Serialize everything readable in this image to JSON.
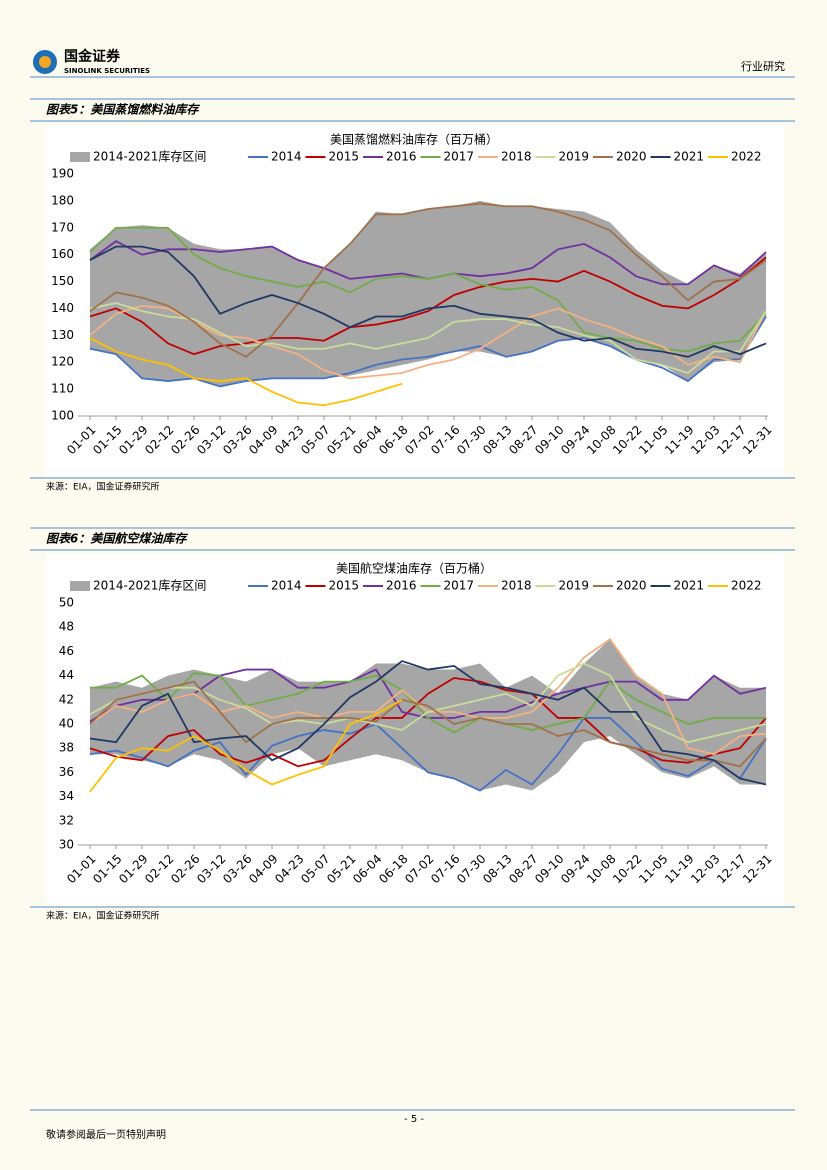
{
  "header": {
    "brand_cn": "国金证券",
    "brand_en": "SINOLINK SECURITIES",
    "section": "行业研究"
  },
  "footer": {
    "page": "- 5 -",
    "notice": "敬请参阅最后一页特别声明"
  },
  "chart_data": [
    {
      "type": "line",
      "caption": "图表5：美国蒸馏燃料油库存",
      "title": "美国蒸馏燃料油库存（百万桶）",
      "source": "来源：EIA，国金证券研究所",
      "categories": [
        "01-01",
        "01-15",
        "01-29",
        "02-12",
        "02-26",
        "03-12",
        "03-26",
        "04-09",
        "04-23",
        "05-07",
        "05-21",
        "06-04",
        "06-18",
        "07-02",
        "07-16",
        "07-30",
        "08-13",
        "08-27",
        "09-10",
        "09-24",
        "10-08",
        "10-22",
        "11-05",
        "11-19",
        "12-03",
        "12-17",
        "12-31"
      ],
      "ylim": [
        100,
        190
      ],
      "yticks": [
        100,
        110,
        120,
        130,
        140,
        150,
        160,
        170,
        180,
        190
      ],
      "grid": false,
      "legend": "top",
      "band": {
        "name": "2014-2021库存区间",
        "color": "#a6a6a6",
        "high": [
          162,
          170,
          171,
          170,
          164,
          162,
          162,
          163,
          158,
          155,
          164,
          176,
          175,
          177,
          178,
          180,
          178,
          178,
          177,
          176,
          172,
          162,
          154,
          149,
          156,
          153,
          161
        ],
        "low": [
          125,
          123,
          114,
          113,
          114,
          111,
          113,
          114,
          114,
          114,
          115,
          117,
          119,
          121,
          124,
          124,
          122,
          124,
          128,
          129,
          126,
          121,
          119,
          113,
          120,
          121,
          137
        ]
      },
      "series": [
        {
          "name": "2014",
          "color": "#4472c4",
          "values": [
            125,
            123,
            114,
            113,
            114,
            111,
            113,
            114,
            114,
            114,
            116,
            119,
            121,
            122,
            124,
            126,
            122,
            124,
            128,
            129,
            126,
            121,
            118,
            113,
            121,
            121,
            137
          ]
        },
        {
          "name": "2015",
          "color": "#c00000",
          "values": [
            137,
            140,
            135,
            127,
            123,
            126,
            127,
            129,
            129,
            128,
            133,
            134,
            136,
            139,
            145,
            148,
            150,
            151,
            150,
            154,
            150,
            145,
            141,
            140,
            145,
            151,
            159
          ]
        },
        {
          "name": "2016",
          "color": "#7030a0",
          "values": [
            158,
            165,
            160,
            162,
            162,
            161,
            162,
            163,
            158,
            155,
            151,
            152,
            153,
            151,
            153,
            152,
            153,
            155,
            162,
            164,
            159,
            152,
            149,
            149,
            156,
            152,
            161
          ]
        },
        {
          "name": "2017",
          "color": "#70ad47",
          "values": [
            161,
            170,
            170,
            170,
            160,
            155,
            152,
            150,
            148,
            150,
            146,
            151,
            152,
            151,
            153,
            149,
            147,
            148,
            143,
            131,
            129,
            128,
            125,
            124,
            127,
            128,
            138
          ]
        },
        {
          "name": "2018",
          "color": "#f4b183",
          "values": [
            130,
            138,
            141,
            140,
            135,
            130,
            129,
            126,
            123,
            117,
            114,
            115,
            116,
            119,
            121,
            125,
            131,
            137,
            140,
            136,
            133,
            129,
            126,
            119,
            122,
            120,
            139
          ]
        },
        {
          "name": "2019",
          "color": "#c9dc9a",
          "values": [
            140,
            142,
            139,
            137,
            136,
            131,
            126,
            127,
            125,
            125,
            127,
            125,
            127,
            129,
            135,
            136,
            136,
            134,
            133,
            130,
            128,
            121,
            119,
            116,
            124,
            124,
            139
          ]
        },
        {
          "name": "2020",
          "color": "#a0714a",
          "values": [
            139,
            146,
            144,
            141,
            135,
            127,
            122,
            130,
            142,
            155,
            164,
            175,
            175,
            177,
            178,
            179,
            178,
            178,
            176,
            173,
            169,
            160,
            152,
            143,
            150,
            151,
            158
          ]
        },
        {
          "name": "2021",
          "color": "#1f3864",
          "values": [
            158,
            163,
            163,
            161,
            152,
            138,
            142,
            145,
            142,
            138,
            133,
            137,
            137,
            140,
            141,
            138,
            137,
            136,
            131,
            128,
            129,
            125,
            124,
            122,
            126,
            123,
            127
          ]
        },
        {
          "name": "2022",
          "color": "#ffc000",
          "values": [
            129,
            124,
            121,
            119,
            114,
            113,
            114,
            109,
            105,
            104,
            106,
            109,
            112,
            null,
            null,
            null,
            null,
            null,
            null,
            null,
            null,
            null,
            null,
            null,
            null,
            null,
            null
          ]
        }
      ]
    },
    {
      "type": "line",
      "caption": "图表6：美国航空煤油库存",
      "title": "美国航空煤油库存（百万桶）",
      "source": "来源：EIA，国金证券研究所",
      "categories": [
        "01-01",
        "01-15",
        "01-29",
        "02-12",
        "02-26",
        "03-12",
        "03-26",
        "04-09",
        "04-23",
        "05-07",
        "05-21",
        "06-04",
        "06-18",
        "07-02",
        "07-16",
        "07-30",
        "08-13",
        "08-27",
        "09-10",
        "09-24",
        "10-08",
        "10-22",
        "11-05",
        "11-19",
        "12-03",
        "12-17",
        "12-31"
      ],
      "ylim": [
        30,
        50
      ],
      "yticks": [
        30,
        32,
        34,
        36,
        38,
        40,
        42,
        44,
        46,
        48,
        50
      ],
      "grid": false,
      "legend": "top",
      "band": {
        "name": "2014-2021库存区间",
        "color": "#a6a6a6",
        "high": [
          43,
          43.5,
          43,
          44,
          44.5,
          44,
          43.5,
          44.5,
          43.5,
          43.5,
          43.5,
          45,
          45,
          44.5,
          44.5,
          45,
          43,
          44,
          42.5,
          45,
          47,
          44,
          42.5,
          42,
          44,
          43,
          43
        ],
        "low": [
          37.5,
          37.5,
          37,
          36.5,
          37.5,
          37,
          35.5,
          37.5,
          38,
          36.5,
          37,
          37.5,
          37,
          36,
          35.5,
          34.5,
          35,
          34.5,
          36,
          38.5,
          39,
          37.5,
          36,
          35.5,
          36.5,
          35,
          35
        ]
      },
      "series": [
        {
          "name": "2014",
          "color": "#4472c4",
          "values": [
            37.5,
            37.8,
            37.2,
            36.5,
            37.8,
            38.5,
            35.8,
            38.2,
            39,
            39.5,
            39.2,
            40,
            38,
            36,
            35.5,
            34.5,
            36.2,
            35,
            37.5,
            40.5,
            40.5,
            38.5,
            36.3,
            35.7,
            37,
            35.5,
            38.8
          ]
        },
        {
          "name": "2015",
          "color": "#c00000",
          "values": [
            38,
            37.3,
            37,
            39,
            39.5,
            37.5,
            36.8,
            37.5,
            36.5,
            37,
            38.8,
            40.5,
            40.5,
            42.5,
            43.8,
            43.5,
            42.8,
            42.5,
            40.5,
            40.5,
            38.5,
            38,
            37,
            36.8,
            37.5,
            38,
            40.5
          ]
        },
        {
          "name": "2016",
          "color": "#7030a0",
          "values": [
            40.2,
            41.5,
            42,
            42,
            42.5,
            44,
            44.5,
            44.5,
            43,
            43,
            43.5,
            44.5,
            41,
            40.5,
            40.5,
            41,
            41,
            41.8,
            42.5,
            43,
            43.5,
            43.5,
            42,
            42,
            44,
            42.5,
            43
          ]
        },
        {
          "name": "2017",
          "color": "#70ad47",
          "values": [
            43,
            43,
            44,
            42,
            44.2,
            44,
            41.5,
            42,
            42.5,
            43.5,
            43.5,
            44,
            42.8,
            40.5,
            39.3,
            40.5,
            40,
            39.5,
            40,
            40.5,
            43.5,
            42,
            41,
            40,
            40.5,
            40.5,
            40.5
          ]
        },
        {
          "name": "2018",
          "color": "#f4b183",
          "values": [
            40,
            41.5,
            41,
            42,
            42.5,
            41,
            41.5,
            40.5,
            41,
            40.5,
            41,
            41,
            42.8,
            41,
            41,
            40.5,
            40.5,
            41,
            43,
            45.5,
            47,
            44,
            42.5,
            38,
            37.5,
            39,
            39.2
          ]
        },
        {
          "name": "2019",
          "color": "#c9dc9a",
          "values": [
            40.8,
            42,
            42.5,
            43,
            43,
            42,
            41.3,
            40,
            40.3,
            40,
            40.5,
            40,
            39.5,
            41,
            41.5,
            42,
            42.5,
            41.5,
            44,
            45,
            44,
            40.5,
            39.5,
            38.5,
            39,
            39.5,
            40
          ]
        },
        {
          "name": "2020",
          "color": "#a0714a",
          "values": [
            40,
            42,
            42.5,
            43,
            43.5,
            41,
            38.5,
            40,
            40.5,
            40.5,
            40.5,
            40.2,
            42,
            41.5,
            40,
            40.5,
            40,
            40,
            39,
            39.5,
            38.5,
            38,
            37.5,
            37,
            37,
            36.5,
            38.8
          ]
        },
        {
          "name": "2021",
          "color": "#1f3864",
          "values": [
            38.8,
            38.5,
            41.5,
            42.5,
            38.5,
            38.8,
            39,
            37,
            38,
            40,
            42.2,
            43.5,
            45.2,
            44.5,
            44.8,
            43.3,
            43,
            42.5,
            42,
            43,
            41,
            41,
            37.8,
            37.5,
            37,
            35.5,
            35
          ]
        },
        {
          "name": "2022",
          "color": "#ffc000",
          "values": [
            34.4,
            37.2,
            38,
            37.8,
            39,
            37.8,
            36.2,
            35,
            35.8,
            36.5,
            40,
            40.8,
            42,
            null,
            null,
            null,
            null,
            null,
            null,
            null,
            null,
            null,
            null,
            null,
            null,
            null,
            null
          ]
        }
      ]
    }
  ]
}
